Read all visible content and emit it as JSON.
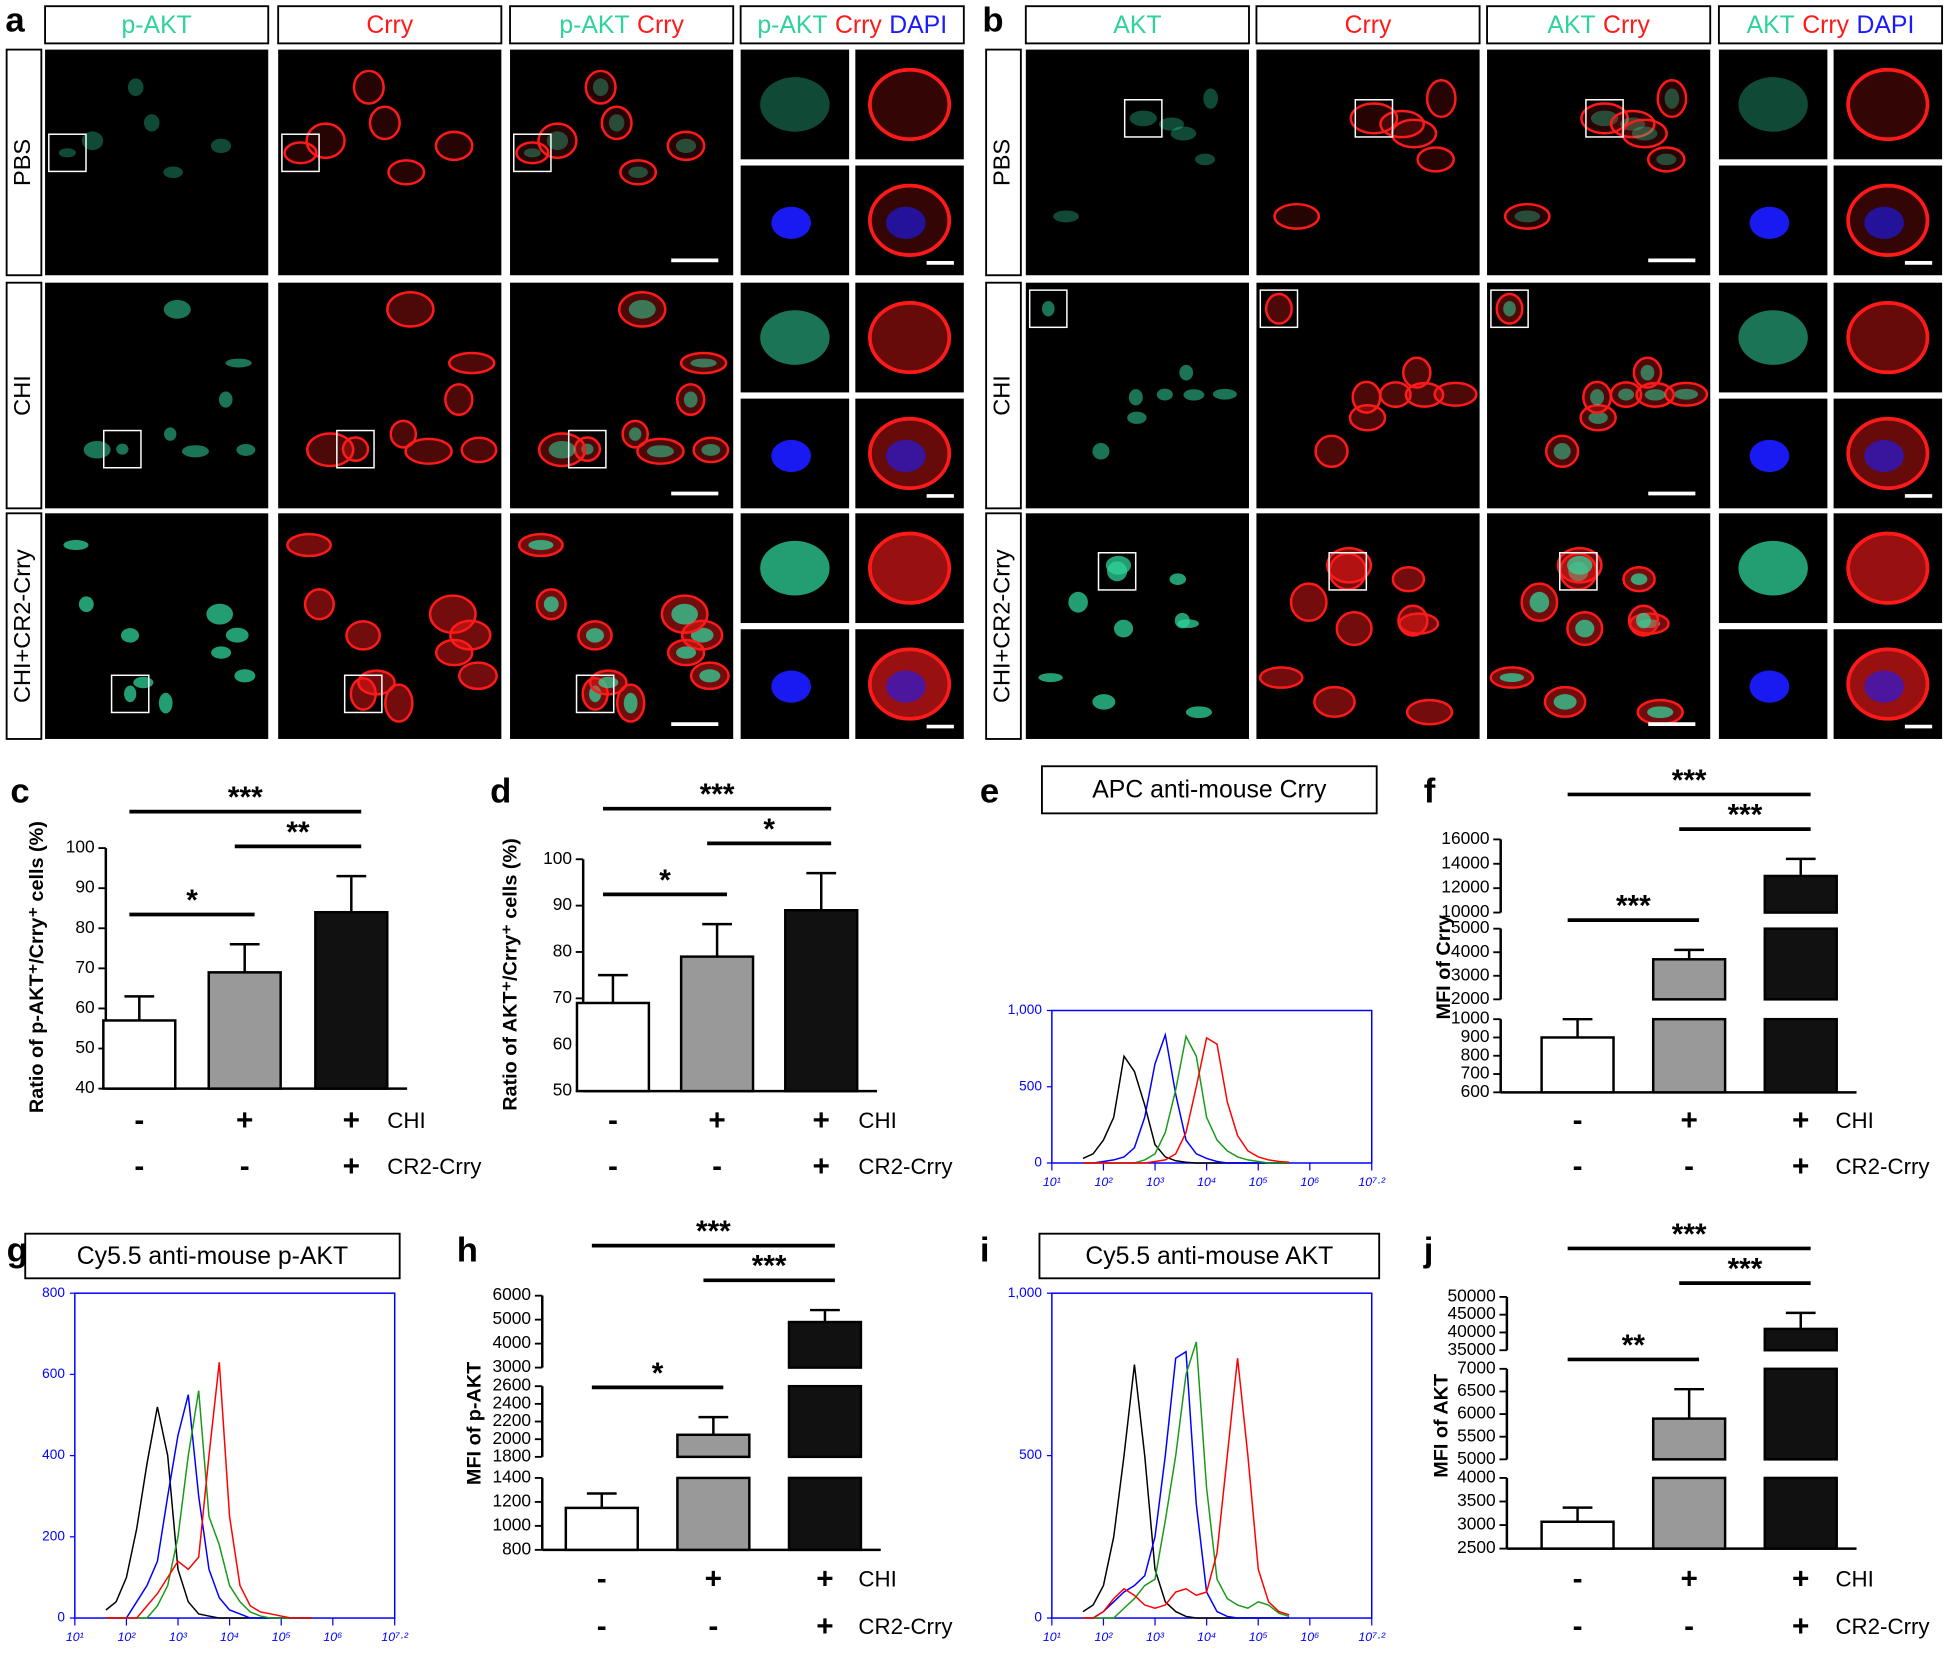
{
  "micrographs": [
    {
      "label": "a",
      "columns": [
        [
          "p-AKT"
        ],
        [
          "Crry"
        ],
        [
          "p-AKT",
          "Crry"
        ],
        [
          "p-AKT",
          "Crry",
          "DAPI"
        ]
      ],
      "rows": [
        "PBS",
        "CHI",
        "CHI+CR2-Crry"
      ]
    },
    {
      "label": "b",
      "columns": [
        [
          "AKT"
        ],
        [
          "Crry"
        ],
        [
          "AKT",
          "Crry"
        ],
        [
          "AKT",
          "Crry",
          "DAPI"
        ]
      ],
      "rows": [
        "PBS",
        "CHI",
        "CHI+CR2-Crry"
      ]
    }
  ],
  "stain_colors": {
    "p-AKT": "#2fd39a",
    "AKT": "#2fd39a",
    "Crry": "#ff1a1a",
    "DAPI": "#1a1aff"
  },
  "chart_data": [
    {
      "type": "bar",
      "label": "c",
      "y_label": "Ratio of p-AKT⁺/Crry⁺ cells (%)",
      "values": [
        57,
        69,
        84
      ],
      "errors": [
        6,
        7,
        9
      ],
      "colors": [
        "#ffffff",
        "#999999",
        "#111111"
      ],
      "ylim": [
        40,
        100
      ],
      "yticks": [
        40,
        50,
        60,
        70,
        80,
        90,
        100
      ],
      "conditions": [
        {
          "name": "CHI",
          "signs": [
            "-",
            "+",
            "+"
          ]
        },
        {
          "name": "CR2-Crry",
          "signs": [
            "-",
            "-",
            "+"
          ]
        }
      ],
      "comparisons": [
        {
          "between": [
            0,
            1
          ],
          "label": "*"
        },
        {
          "between": [
            1,
            2
          ],
          "label": "**"
        },
        {
          "between": [
            0,
            2
          ],
          "label": "***"
        }
      ]
    },
    {
      "type": "bar",
      "label": "d",
      "y_label": "Ratio of AKT⁺/Crry⁺ cells (%)",
      "values": [
        69,
        79,
        89
      ],
      "errors": [
        6,
        7,
        8
      ],
      "colors": [
        "#ffffff",
        "#999999",
        "#111111"
      ],
      "ylim": [
        50,
        100
      ],
      "yticks": [
        50,
        60,
        70,
        80,
        90,
        100
      ],
      "conditions": [
        {
          "name": "CHI",
          "signs": [
            "-",
            "+",
            "+"
          ]
        },
        {
          "name": "CR2-Crry",
          "signs": [
            "-",
            "-",
            "+"
          ]
        }
      ],
      "comparisons": [
        {
          "between": [
            0,
            1
          ],
          "label": "*"
        },
        {
          "between": [
            1,
            2
          ],
          "label": "*"
        },
        {
          "between": [
            0,
            2
          ],
          "label": "***"
        }
      ]
    },
    {
      "type": "histogram",
      "label": "e",
      "title": "APC anti-mouse Crry",
      "axis_color": "#0000ff",
      "xscale": "log",
      "xlim": [
        10,
        15848932
      ],
      "xticks": [
        {
          "value": 10,
          "label": "10¹"
        },
        {
          "value": 100,
          "label": "10²"
        },
        {
          "value": 1000,
          "label": "10³"
        },
        {
          "value": 10000,
          "label": "10⁴"
        },
        {
          "value": 100000,
          "label": "10⁵"
        },
        {
          "value": 1000000,
          "label": "10⁶"
        },
        {
          "value": 15848932,
          "label": "10⁷·²"
        }
      ],
      "ylim": [
        0,
        1000
      ],
      "yticks": [
        0,
        500,
        {
          "value": 1000,
          "label": "1,000"
        }
      ],
      "x": [
        40,
        63,
        100,
        158,
        251,
        398,
        631,
        1000,
        1585,
        2512,
        3981,
        6310,
        10000,
        15849,
        25119,
        39811,
        63096,
        100000,
        158489,
        251189,
        398107
      ],
      "series": [
        {
          "color": "#000000",
          "values": [
            30,
            60,
            150,
            300,
            700,
            600,
            380,
            120,
            40,
            15,
            5,
            0,
            0,
            0,
            0,
            0,
            0,
            0,
            0,
            0,
            0
          ]
        },
        {
          "color": "#0000ff",
          "values": [
            0,
            0,
            10,
            20,
            40,
            100,
            300,
            650,
            840,
            450,
            150,
            60,
            30,
            10,
            0,
            0,
            0,
            0,
            0,
            0,
            0
          ]
        },
        {
          "color": "#1a9a1a",
          "values": [
            0,
            0,
            0,
            0,
            0,
            0,
            20,
            60,
            200,
            480,
            830,
            700,
            300,
            150,
            80,
            40,
            20,
            10,
            0,
            0,
            0
          ]
        },
        {
          "color": "#ff0000",
          "values": [
            0,
            0,
            0,
            0,
            0,
            0,
            0,
            10,
            20,
            60,
            200,
            500,
            820,
            780,
            400,
            180,
            80,
            40,
            20,
            10,
            5
          ]
        }
      ]
    },
    {
      "type": "bar",
      "label": "f",
      "y_label": "MFI of Crry",
      "values": [
        900,
        3700,
        13000
      ],
      "errors": [
        100,
        400,
        1400
      ],
      "colors": [
        "#ffffff",
        "#999999",
        "#111111"
      ],
      "axis_segments": [
        {
          "ylim": [
            600,
            1000
          ],
          "yticks": [
            600,
            700,
            800,
            900,
            1000
          ]
        },
        {
          "ylim": [
            2000,
            5000
          ],
          "yticks": [
            2000,
            3000,
            4000,
            5000
          ]
        },
        {
          "ylim": [
            10000,
            16000
          ],
          "yticks": [
            10000,
            12000,
            14000,
            16000
          ]
        }
      ],
      "conditions": [
        {
          "name": "CHI",
          "signs": [
            "-",
            "+",
            "+"
          ]
        },
        {
          "name": "CR2-Crry",
          "signs": [
            "-",
            "-",
            "+"
          ]
        }
      ],
      "comparisons": [
        {
          "between": [
            0,
            1
          ],
          "label": "***"
        },
        {
          "between": [
            1,
            2
          ],
          "label": "***"
        },
        {
          "between": [
            0,
            2
          ],
          "label": "***"
        }
      ]
    },
    {
      "type": "histogram",
      "label": "g",
      "title": "Cy5.5 anti-mouse p-AKT",
      "axis_color": "#0000ff",
      "xscale": "log",
      "xlim": [
        10,
        15848932
      ],
      "xticks": [
        {
          "value": 10,
          "label": "10¹"
        },
        {
          "value": 100,
          "label": "10²"
        },
        {
          "value": 1000,
          "label": "10³"
        },
        {
          "value": 10000,
          "label": "10⁴"
        },
        {
          "value": 100000,
          "label": "10⁵"
        },
        {
          "value": 1000000,
          "label": "10⁶"
        },
        {
          "value": 15848932,
          "label": "10⁷·²"
        }
      ],
      "ylim": [
        0,
        800
      ],
      "yticks": [
        0,
        200,
        400,
        600,
        800
      ],
      "x": [
        40,
        63,
        100,
        158,
        251,
        398,
        631,
        1000,
        1585,
        2512,
        3981,
        6310,
        10000,
        15849,
        25119,
        39811,
        63096,
        100000,
        158489,
        251189,
        398107
      ],
      "series": [
        {
          "color": "#000000",
          "values": [
            20,
            40,
            100,
            220,
            380,
            520,
            400,
            120,
            40,
            10,
            5,
            0,
            0,
            0,
            0,
            0,
            0,
            0,
            0,
            0,
            0
          ]
        },
        {
          "color": "#0000ff",
          "values": [
            0,
            0,
            0,
            40,
            80,
            140,
            300,
            450,
            550,
            300,
            120,
            50,
            20,
            10,
            0,
            0,
            0,
            0,
            0,
            0,
            0
          ]
        },
        {
          "color": "#1a9a1a",
          "values": [
            0,
            0,
            0,
            0,
            0,
            30,
            80,
            200,
            400,
            560,
            250,
            180,
            80,
            40,
            15,
            5,
            0,
            0,
            0,
            0,
            0
          ]
        },
        {
          "color": "#ff0000",
          "values": [
            0,
            0,
            0,
            0,
            30,
            60,
            100,
            140,
            120,
            150,
            400,
            630,
            250,
            80,
            30,
            15,
            10,
            5,
            0,
            0,
            0
          ]
        }
      ]
    },
    {
      "type": "bar",
      "label": "h",
      "y_label": "MFI of p-AKT",
      "values": [
        1150,
        2050,
        4900
      ],
      "errors": [
        120,
        200,
        500
      ],
      "colors": [
        "#ffffff",
        "#999999",
        "#111111"
      ],
      "axis_segments": [
        {
          "ylim": [
            800,
            1400
          ],
          "yticks": [
            800,
            1000,
            1200,
            1400
          ]
        },
        {
          "ylim": [
            1800,
            2600
          ],
          "yticks": [
            1800,
            2000,
            2200,
            2400,
            2600
          ]
        },
        {
          "ylim": [
            3000,
            6000
          ],
          "yticks": [
            3000,
            4000,
            5000,
            6000
          ]
        }
      ],
      "conditions": [
        {
          "name": "CHI",
          "signs": [
            "-",
            "+",
            "+"
          ]
        },
        {
          "name": "CR2-Crry",
          "signs": [
            "-",
            "-",
            "+"
          ]
        }
      ],
      "comparisons": [
        {
          "between": [
            0,
            1
          ],
          "label": "*"
        },
        {
          "between": [
            1,
            2
          ],
          "label": "***"
        },
        {
          "between": [
            0,
            2
          ],
          "label": "***"
        }
      ]
    },
    {
      "type": "histogram",
      "label": "i",
      "title": "Cy5.5 anti-mouse AKT",
      "axis_color": "#0000ff",
      "xscale": "log",
      "xlim": [
        10,
        15848932
      ],
      "xticks": [
        {
          "value": 10,
          "label": "10¹"
        },
        {
          "value": 100,
          "label": "10²"
        },
        {
          "value": 1000,
          "label": "10³"
        },
        {
          "value": 10000,
          "label": "10⁴"
        },
        {
          "value": 100000,
          "label": "10⁵"
        },
        {
          "value": 1000000,
          "label": "10⁶"
        },
        {
          "value": 15848932,
          "label": "10⁷·²"
        }
      ],
      "ylim": [
        0,
        1000
      ],
      "yticks": [
        0,
        500,
        {
          "value": 1000,
          "label": "1,000"
        }
      ],
      "x": [
        40,
        63,
        100,
        158,
        251,
        398,
        631,
        1000,
        1585,
        2512,
        3981,
        6310,
        10000,
        15849,
        25119,
        39811,
        63096,
        100000,
        158489,
        251189,
        398107
      ],
      "series": [
        {
          "color": "#000000",
          "values": [
            20,
            40,
            100,
            250,
            500,
            780,
            500,
            150,
            50,
            20,
            5,
            0,
            0,
            0,
            0,
            0,
            0,
            0,
            0,
            0,
            0
          ]
        },
        {
          "color": "#0000ff",
          "values": [
            0,
            0,
            20,
            50,
            80,
            100,
            130,
            250,
            500,
            800,
            820,
            350,
            80,
            20,
            5,
            0,
            0,
            0,
            0,
            0,
            0
          ]
        },
        {
          "color": "#1a9a1a",
          "values": [
            0,
            0,
            0,
            0,
            30,
            60,
            100,
            120,
            300,
            500,
            750,
            850,
            400,
            120,
            60,
            40,
            30,
            50,
            40,
            15,
            5
          ]
        },
        {
          "color": "#ff0000",
          "values": [
            0,
            0,
            20,
            60,
            90,
            70,
            40,
            30,
            40,
            80,
            90,
            70,
            80,
            200,
            500,
            800,
            500,
            150,
            50,
            20,
            10
          ]
        }
      ]
    },
    {
      "type": "bar",
      "label": "j",
      "y_label": "MFI of AKT",
      "values": [
        3070,
        5900,
        41000
      ],
      "errors": [
        300,
        650,
        4500
      ],
      "colors": [
        "#ffffff",
        "#999999",
        "#111111"
      ],
      "axis_segments": [
        {
          "ylim": [
            2500,
            4000
          ],
          "yticks": [
            2500,
            3000,
            3500,
            4000
          ]
        },
        {
          "ylim": [
            5000,
            7000
          ],
          "yticks": [
            5000,
            5500,
            6000,
            6500,
            7000
          ]
        },
        {
          "ylim": [
            35000,
            50000
          ],
          "yticks": [
            35000,
            40000,
            45000,
            50000
          ]
        }
      ],
      "conditions": [
        {
          "name": "CHI",
          "signs": [
            "-",
            "+",
            "+"
          ]
        },
        {
          "name": "CR2-Crry",
          "signs": [
            "-",
            "-",
            "+"
          ]
        }
      ],
      "comparisons": [
        {
          "between": [
            0,
            1
          ],
          "label": "**"
        },
        {
          "between": [
            1,
            2
          ],
          "label": "***"
        },
        {
          "between": [
            0,
            2
          ],
          "label": "***"
        }
      ]
    }
  ]
}
